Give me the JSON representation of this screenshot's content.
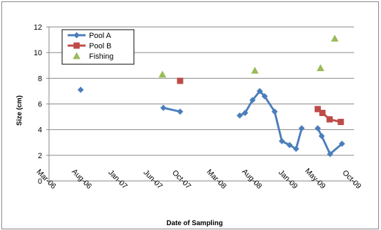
{
  "chart_data": {
    "type": "line",
    "title": "",
    "xlabel": "Date of Sampling",
    "ylabel": "Size (cm)",
    "ylim": [
      0,
      12
    ],
    "yticks": [
      0,
      2,
      4,
      6,
      8,
      10,
      12
    ],
    "xlim": [
      "2006-03-01",
      "2009-10-01"
    ],
    "xticks": [
      {
        "date": "2006-03-01",
        "label": "Mar-06"
      },
      {
        "date": "2006-08-01",
        "label": "Aug-06"
      },
      {
        "date": "2007-01-01",
        "label": "Jan-07"
      },
      {
        "date": "2007-06-01",
        "label": "Jun-07"
      },
      {
        "date": "2007-10-01",
        "label": "Oct-07"
      },
      {
        "date": "2008-03-01",
        "label": "Mar-08"
      },
      {
        "date": "2008-08-01",
        "label": "Aug-08"
      },
      {
        "date": "2009-01-01",
        "label": "Jan-09"
      },
      {
        "date": "2009-05-01",
        "label": "May-09"
      },
      {
        "date": "2009-10-01",
        "label": "Oct-09"
      }
    ],
    "grid": "horizontal",
    "legend_position": "top-left",
    "series": [
      {
        "name": "Pool A",
        "color": "#4a7ebb",
        "marker": "diamond",
        "segments": [
          [
            [
              "2006-07-15",
              7.1
            ]
          ],
          [
            [
              "2007-07-05",
              5.7
            ],
            [
              "2007-09-15",
              5.4
            ]
          ],
          [
            [
              "2008-05-28",
              5.1
            ],
            [
              "2008-06-20",
              5.3
            ],
            [
              "2008-07-22",
              6.3
            ],
            [
              "2008-08-22",
              7.0
            ],
            [
              "2008-09-12",
              6.6
            ],
            [
              "2008-10-25",
              5.4
            ],
            [
              "2008-11-25",
              3.1
            ],
            [
              "2008-12-28",
              2.8
            ],
            [
              "2009-01-25",
              2.5
            ],
            [
              "2009-02-18",
              4.1
            ]
          ],
          [
            [
              "2009-04-28",
              4.1
            ],
            [
              "2009-05-15",
              3.5
            ],
            [
              "2009-06-20",
              2.1
            ],
            [
              "2009-08-10",
              2.9
            ]
          ]
        ]
      },
      {
        "name": "Pool B",
        "color": "#be4b48",
        "marker": "square",
        "segments": [
          [
            [
              "2007-09-15",
              7.8
            ]
          ],
          [
            [
              "2009-04-28",
              5.6
            ],
            [
              "2009-05-18",
              5.3
            ],
            [
              "2009-06-18",
              4.8
            ],
            [
              "2009-08-05",
              4.6
            ]
          ]
        ]
      },
      {
        "name": "Fishing",
        "color": "#9bbb59",
        "marker": "triangle",
        "segments": [
          [
            [
              "2007-07-01",
              8.3
            ]
          ],
          [
            [
              "2008-08-01",
              8.6
            ]
          ],
          [
            [
              "2009-05-10",
              8.8
            ]
          ],
          [
            [
              "2009-07-10",
              11.1
            ]
          ]
        ]
      }
    ]
  }
}
